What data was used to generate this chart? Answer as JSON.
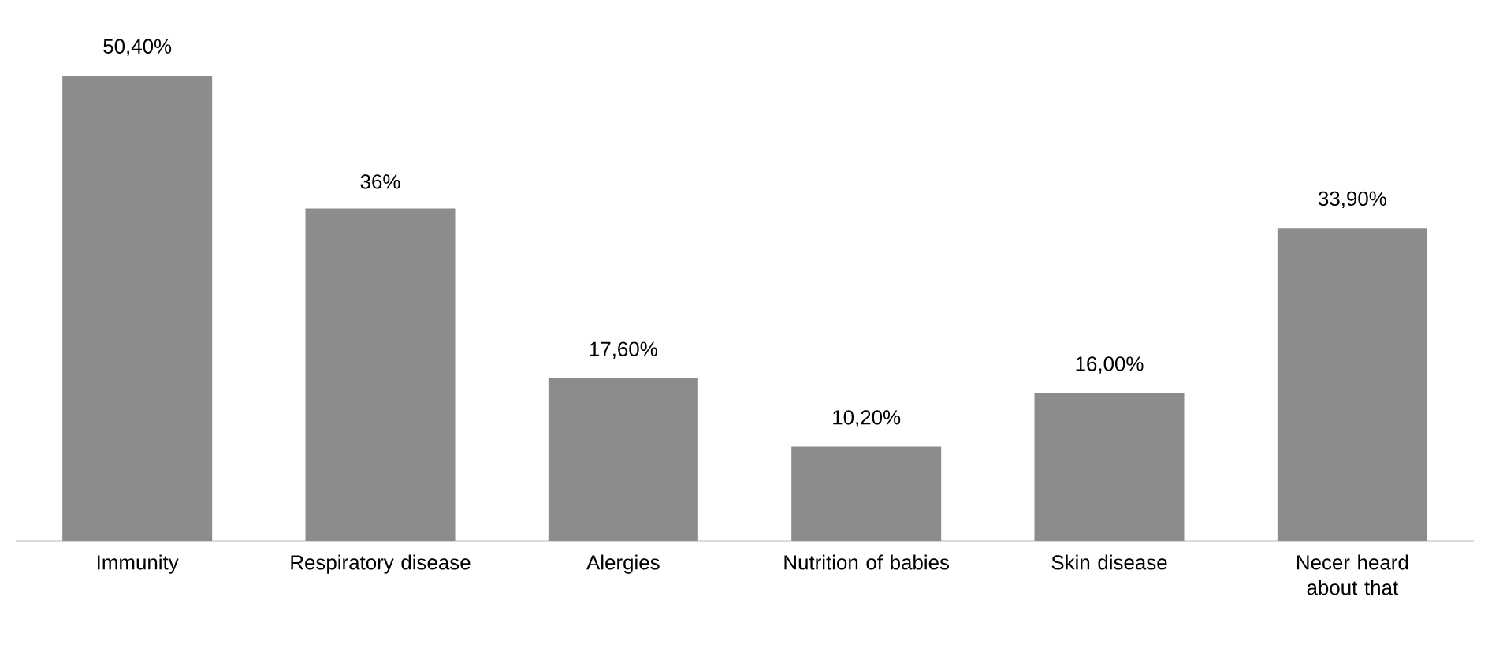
{
  "chart_data": {
    "type": "bar",
    "categories": [
      "Immunity",
      "Respiratory disease",
      "Alergies",
      "Nutrition of babies",
      "Skin disease",
      "Necer heard about that"
    ],
    "values": [
      50.4,
      36,
      17.6,
      10.2,
      16.0,
      33.9
    ],
    "value_labels": [
      "50,40%",
      "36%",
      "17,60%",
      "10,20%",
      "16,00%",
      "33,90%"
    ],
    "color": "#8c8c8c"
  }
}
